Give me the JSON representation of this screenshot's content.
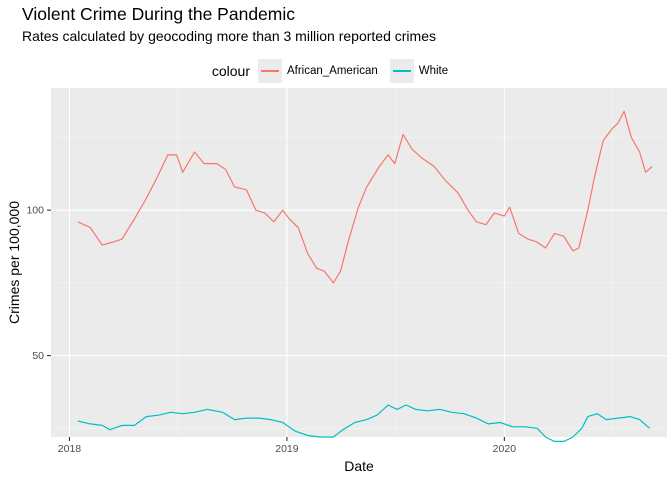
{
  "title": "Violent Crime During the Pandemic",
  "subtitle": "Rates calculated by geocoding more than 3 million reported crimes",
  "chart_data": {
    "type": "line",
    "title": "Violent Crime During the Pandemic",
    "subtitle": "Rates calculated by geocoding more than 3 million reported crimes",
    "xlabel": "Date",
    "ylabel": "Crimes per 100,000",
    "x_ticks": [
      "2018",
      "2019",
      "2020"
    ],
    "y_ticks": [
      50,
      100
    ],
    "xlim": [
      "2017-12-01",
      "2020-09-30"
    ],
    "ylim": [
      22,
      142
    ],
    "grid": true,
    "legend_title": "colour",
    "legend_position": "top",
    "series": [
      {
        "name": "African_American",
        "color": "#F8766D",
        "points": [
          [
            "2018-01-15",
            96
          ],
          [
            "2018-02-05",
            94
          ],
          [
            "2018-02-25",
            88
          ],
          [
            "2018-03-15",
            89
          ],
          [
            "2018-03-30",
            90
          ],
          [
            "2018-04-20",
            97
          ],
          [
            "2018-05-10",
            104
          ],
          [
            "2018-05-30",
            112
          ],
          [
            "2018-06-15",
            119
          ],
          [
            "2018-06-30",
            119
          ],
          [
            "2018-07-10",
            113
          ],
          [
            "2018-07-30",
            120
          ],
          [
            "2018-08-15",
            116
          ],
          [
            "2018-09-05",
            116
          ],
          [
            "2018-09-20",
            114
          ],
          [
            "2018-10-05",
            108
          ],
          [
            "2018-10-25",
            107
          ],
          [
            "2018-11-10",
            100
          ],
          [
            "2018-11-25",
            99
          ],
          [
            "2018-12-10",
            96
          ],
          [
            "2018-12-25",
            100
          ],
          [
            "2019-01-05",
            97
          ],
          [
            "2019-01-20",
            94
          ],
          [
            "2019-02-05",
            85
          ],
          [
            "2019-02-20",
            80
          ],
          [
            "2019-03-05",
            79
          ],
          [
            "2019-03-20",
            75
          ],
          [
            "2019-04-01",
            79
          ],
          [
            "2019-04-15",
            90
          ],
          [
            "2019-05-01",
            101
          ],
          [
            "2019-05-15",
            108
          ],
          [
            "2019-06-05",
            115
          ],
          [
            "2019-06-20",
            119
          ],
          [
            "2019-07-01",
            116
          ],
          [
            "2019-07-15",
            126
          ],
          [
            "2019-07-30",
            121
          ],
          [
            "2019-08-15",
            118
          ],
          [
            "2019-09-05",
            115
          ],
          [
            "2019-09-25",
            110
          ],
          [
            "2019-10-15",
            106
          ],
          [
            "2019-11-01",
            100
          ],
          [
            "2019-11-15",
            96
          ],
          [
            "2019-12-01",
            95
          ],
          [
            "2019-12-15",
            99
          ],
          [
            "2020-01-01",
            98
          ],
          [
            "2020-01-10",
            101
          ],
          [
            "2020-01-25",
            92
          ],
          [
            "2020-02-10",
            90
          ],
          [
            "2020-02-25",
            89
          ],
          [
            "2020-03-10",
            87
          ],
          [
            "2020-03-25",
            92
          ],
          [
            "2020-04-10",
            91
          ],
          [
            "2020-04-25",
            86
          ],
          [
            "2020-05-05",
            87
          ],
          [
            "2020-05-20",
            100
          ],
          [
            "2020-06-01",
            112
          ],
          [
            "2020-06-15",
            124
          ],
          [
            "2020-06-30",
            128
          ],
          [
            "2020-07-10",
            130
          ],
          [
            "2020-07-20",
            134
          ],
          [
            "2020-08-01",
            125
          ],
          [
            "2020-08-15",
            120
          ],
          [
            "2020-08-25",
            113
          ],
          [
            "2020-09-05",
            115
          ]
        ]
      },
      {
        "name": "White",
        "color": "#00BFC4",
        "points": [
          [
            "2018-01-15",
            27.5
          ],
          [
            "2018-02-05",
            26.5
          ],
          [
            "2018-02-25",
            26
          ],
          [
            "2018-03-10",
            24.5
          ],
          [
            "2018-03-30",
            26
          ],
          [
            "2018-04-20",
            26
          ],
          [
            "2018-05-10",
            29
          ],
          [
            "2018-05-30",
            29.5
          ],
          [
            "2018-06-20",
            30.5
          ],
          [
            "2018-07-10",
            30
          ],
          [
            "2018-07-30",
            30.5
          ],
          [
            "2018-08-20",
            31.5
          ],
          [
            "2018-09-15",
            30.5
          ],
          [
            "2018-10-05",
            28
          ],
          [
            "2018-10-25",
            28.5
          ],
          [
            "2018-11-15",
            28.5
          ],
          [
            "2018-12-05",
            28
          ],
          [
            "2018-12-25",
            27
          ],
          [
            "2019-01-15",
            24
          ],
          [
            "2019-02-05",
            22.5
          ],
          [
            "2019-02-25",
            22
          ],
          [
            "2019-03-20",
            22
          ],
          [
            "2019-04-05",
            24.5
          ],
          [
            "2019-04-25",
            27
          ],
          [
            "2019-05-15",
            28
          ],
          [
            "2019-06-01",
            29.5
          ],
          [
            "2019-06-20",
            33
          ],
          [
            "2019-07-05",
            31.5
          ],
          [
            "2019-07-20",
            33
          ],
          [
            "2019-08-05",
            31.5
          ],
          [
            "2019-08-25",
            31
          ],
          [
            "2019-09-15",
            31.5
          ],
          [
            "2019-10-05",
            30.5
          ],
          [
            "2019-10-25",
            30
          ],
          [
            "2019-11-15",
            28.5
          ],
          [
            "2019-12-05",
            26.5
          ],
          [
            "2019-12-25",
            27
          ],
          [
            "2020-01-15",
            25.5
          ],
          [
            "2020-02-05",
            25.5
          ],
          [
            "2020-02-25",
            25
          ],
          [
            "2020-03-10",
            22
          ],
          [
            "2020-03-25",
            20.5
          ],
          [
            "2020-04-10",
            20.5
          ],
          [
            "2020-04-25",
            22
          ],
          [
            "2020-05-10",
            25
          ],
          [
            "2020-05-20",
            29
          ],
          [
            "2020-06-05",
            30
          ],
          [
            "2020-06-20",
            28
          ],
          [
            "2020-07-10",
            28.5
          ],
          [
            "2020-07-30",
            29
          ],
          [
            "2020-08-15",
            28
          ],
          [
            "2020-09-01",
            25
          ]
        ]
      }
    ]
  }
}
